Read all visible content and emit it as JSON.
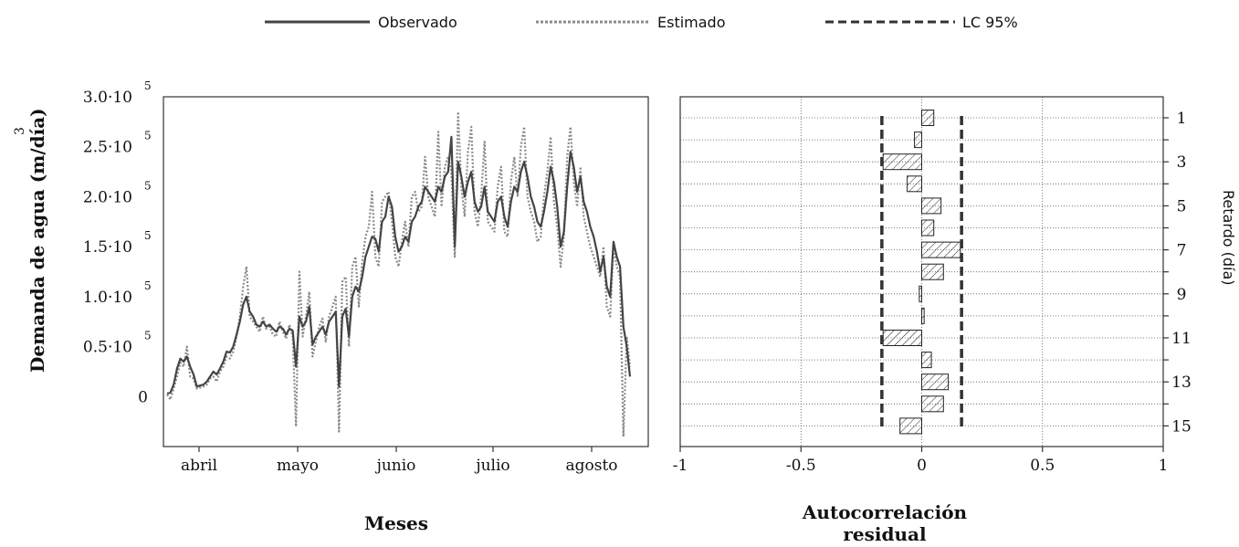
{
  "legend": [
    {
      "label": "Observado",
      "color": "#444444",
      "dash": "solid"
    },
    {
      "label": "Estimado",
      "color": "#8a8a8a",
      "dash": "dotted"
    },
    {
      "label": "LC 95%",
      "color": "#333333",
      "dash": "dashed"
    }
  ],
  "chart_data": [
    {
      "type": "line",
      "ylabel": "Demanda de agua (m/día)",
      "ylabel_sup": "3",
      "xlabel": "Meses",
      "ylim": [
        -50000,
        300000
      ],
      "y_ticks": [
        {
          "value": 0,
          "base": "0",
          "sup": ""
        },
        {
          "value": 50000,
          "base": "0.5·10",
          "sup": "5"
        },
        {
          "value": 100000,
          "base": "1.0·10",
          "sup": "5"
        },
        {
          "value": 150000,
          "base": "1.5·10",
          "sup": "5"
        },
        {
          "value": 200000,
          "base": "2.0·10",
          "sup": "5"
        },
        {
          "value": 250000,
          "base": "2.5·10",
          "sup": "5"
        },
        {
          "value": 300000,
          "base": "3.0·10",
          "sup": "5"
        }
      ],
      "x_ticks": [
        "abril",
        "mayo",
        "junio",
        "julio",
        "agosto"
      ],
      "series": [
        {
          "name": "Observado",
          "color": "#444444",
          "values": [
            3000,
            4000,
            12000,
            28000,
            38000,
            35000,
            40000,
            30000,
            22000,
            10000,
            11000,
            12000,
            15000,
            20000,
            25000,
            22000,
            28000,
            35000,
            45000,
            44000,
            50000,
            62000,
            75000,
            92000,
            100000,
            85000,
            80000,
            72000,
            70000,
            75000,
            70000,
            72000,
            68000,
            65000,
            70000,
            68000,
            62000,
            68000,
            66000,
            30000,
            80000,
            70000,
            75000,
            90000,
            52000,
            60000,
            65000,
            70000,
            62000,
            75000,
            80000,
            85000,
            10000,
            80000,
            88000,
            60000,
            100000,
            110000,
            105000,
            120000,
            140000,
            150000,
            160000,
            158000,
            145000,
            175000,
            180000,
            200000,
            190000,
            160000,
            145000,
            150000,
            160000,
            155000,
            175000,
            180000,
            190000,
            195000,
            210000,
            205000,
            200000,
            195000,
            210000,
            205000,
            220000,
            225000,
            260000,
            150000,
            235000,
            220000,
            200000,
            215000,
            225000,
            195000,
            185000,
            190000,
            210000,
            185000,
            180000,
            175000,
            195000,
            200000,
            180000,
            170000,
            195000,
            210000,
            205000,
            225000,
            235000,
            220000,
            200000,
            190000,
            175000,
            170000,
            185000,
            205000,
            230000,
            215000,
            190000,
            150000,
            165000,
            210000,
            245000,
            230000,
            205000,
            220000,
            195000,
            185000,
            170000,
            160000,
            145000,
            125000,
            140000,
            110000,
            100000,
            155000,
            140000,
            130000,
            70000,
            50000,
            20000
          ]
        },
        {
          "name": "Estimado",
          "color": "#8a8a8a",
          "values": [
            2000,
            -3000,
            8000,
            20000,
            34000,
            30000,
            50000,
            20000,
            18000,
            8000,
            9000,
            10000,
            12000,
            18000,
            20000,
            15000,
            25000,
            30000,
            40000,
            38000,
            45000,
            60000,
            80000,
            110000,
            130000,
            80000,
            75000,
            70000,
            65000,
            80000,
            68000,
            70000,
            62000,
            60000,
            75000,
            65000,
            58000,
            72000,
            60000,
            -30000,
            125000,
            60000,
            80000,
            105000,
            40000,
            55000,
            70000,
            78000,
            55000,
            80000,
            90000,
            100000,
            -35000,
            115000,
            120000,
            50000,
            130000,
            140000,
            90000,
            135000,
            160000,
            170000,
            205000,
            140000,
            130000,
            195000,
            200000,
            205000,
            175000,
            140000,
            130000,
            155000,
            175000,
            150000,
            200000,
            205000,
            185000,
            190000,
            240000,
            200000,
            190000,
            180000,
            265000,
            190000,
            230000,
            240000,
            225000,
            140000,
            285000,
            210000,
            180000,
            245000,
            270000,
            185000,
            170000,
            200000,
            255000,
            175000,
            170000,
            165000,
            210000,
            230000,
            165000,
            160000,
            215000,
            240000,
            200000,
            250000,
            270000,
            200000,
            185000,
            175000,
            155000,
            160000,
            200000,
            225000,
            260000,
            195000,
            170000,
            130000,
            160000,
            240000,
            270000,
            215000,
            190000,
            230000,
            180000,
            165000,
            150000,
            140000,
            130000,
            120000,
            150000,
            90000,
            80000,
            150000,
            130000,
            120000,
            -40000,
            60000,
            30000
          ]
        }
      ]
    },
    {
      "type": "bar",
      "orientation": "horizontal",
      "xlabel": "Autocorrelación residual",
      "ylabel": "Retardo (día)",
      "xlim": [
        -1,
        1
      ],
      "x_ticks": [
        "-1",
        "-0.5",
        "0",
        "0.5",
        "1"
      ],
      "categories": [
        1,
        2,
        3,
        4,
        5,
        6,
        7,
        8,
        9,
        10,
        11,
        12,
        13,
        14,
        15
      ],
      "y_tick_labels": [
        "1",
        "",
        "3",
        "",
        "5",
        "",
        "7",
        "",
        "9",
        "",
        "11",
        "",
        "13",
        "",
        "15"
      ],
      "values": [
        0.05,
        -0.03,
        -0.16,
        -0.06,
        0.08,
        0.05,
        0.16,
        0.09,
        -0.01,
        0.01,
        -0.16,
        0.04,
        0.11,
        0.09,
        -0.09
      ],
      "confidence_limit": 0.165
    }
  ]
}
